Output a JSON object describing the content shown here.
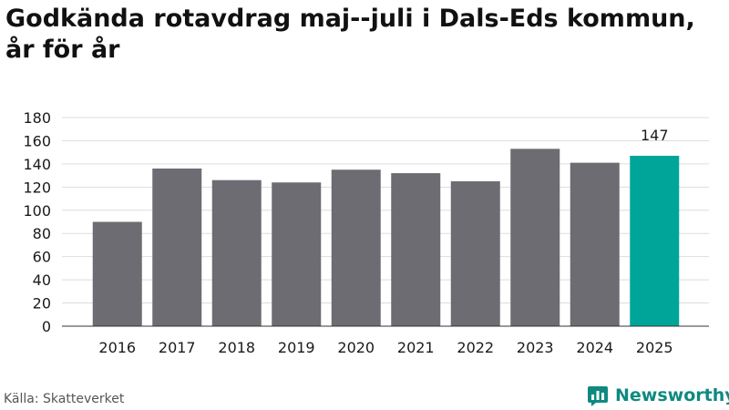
{
  "header": {
    "title": "Godkända rotavdrag maj--juli i Dals-Eds kommun, år för år"
  },
  "chart_data": {
    "type": "bar",
    "title": "Godkända rotavdrag maj--juli i Dals-Eds kommun, år för år",
    "xlabel": "",
    "ylabel": "",
    "categories": [
      "2016",
      "2017",
      "2018",
      "2019",
      "2020",
      "2021",
      "2022",
      "2023",
      "2024",
      "2025"
    ],
    "values": [
      90,
      136,
      126,
      124,
      135,
      132,
      125,
      153,
      141,
      147
    ],
    "ylim": [
      0,
      180
    ],
    "yticks": [
      0,
      20,
      40,
      60,
      80,
      100,
      120,
      140,
      160,
      180
    ],
    "grid": true,
    "legend": "none",
    "highlight_index": 9,
    "data_labels": [
      {
        "index": 9,
        "text": "147"
      }
    ],
    "colors": {
      "bar": "#6d6c72",
      "highlight": "#00a59a",
      "grid": "#dddddd",
      "axis": "#333333"
    }
  },
  "footer": {
    "source": "Källa: Skatteverket",
    "brand": "Newsworthy",
    "brand_icon": "newsworthy-logo-icon",
    "brand_color": "#0e8a80"
  }
}
